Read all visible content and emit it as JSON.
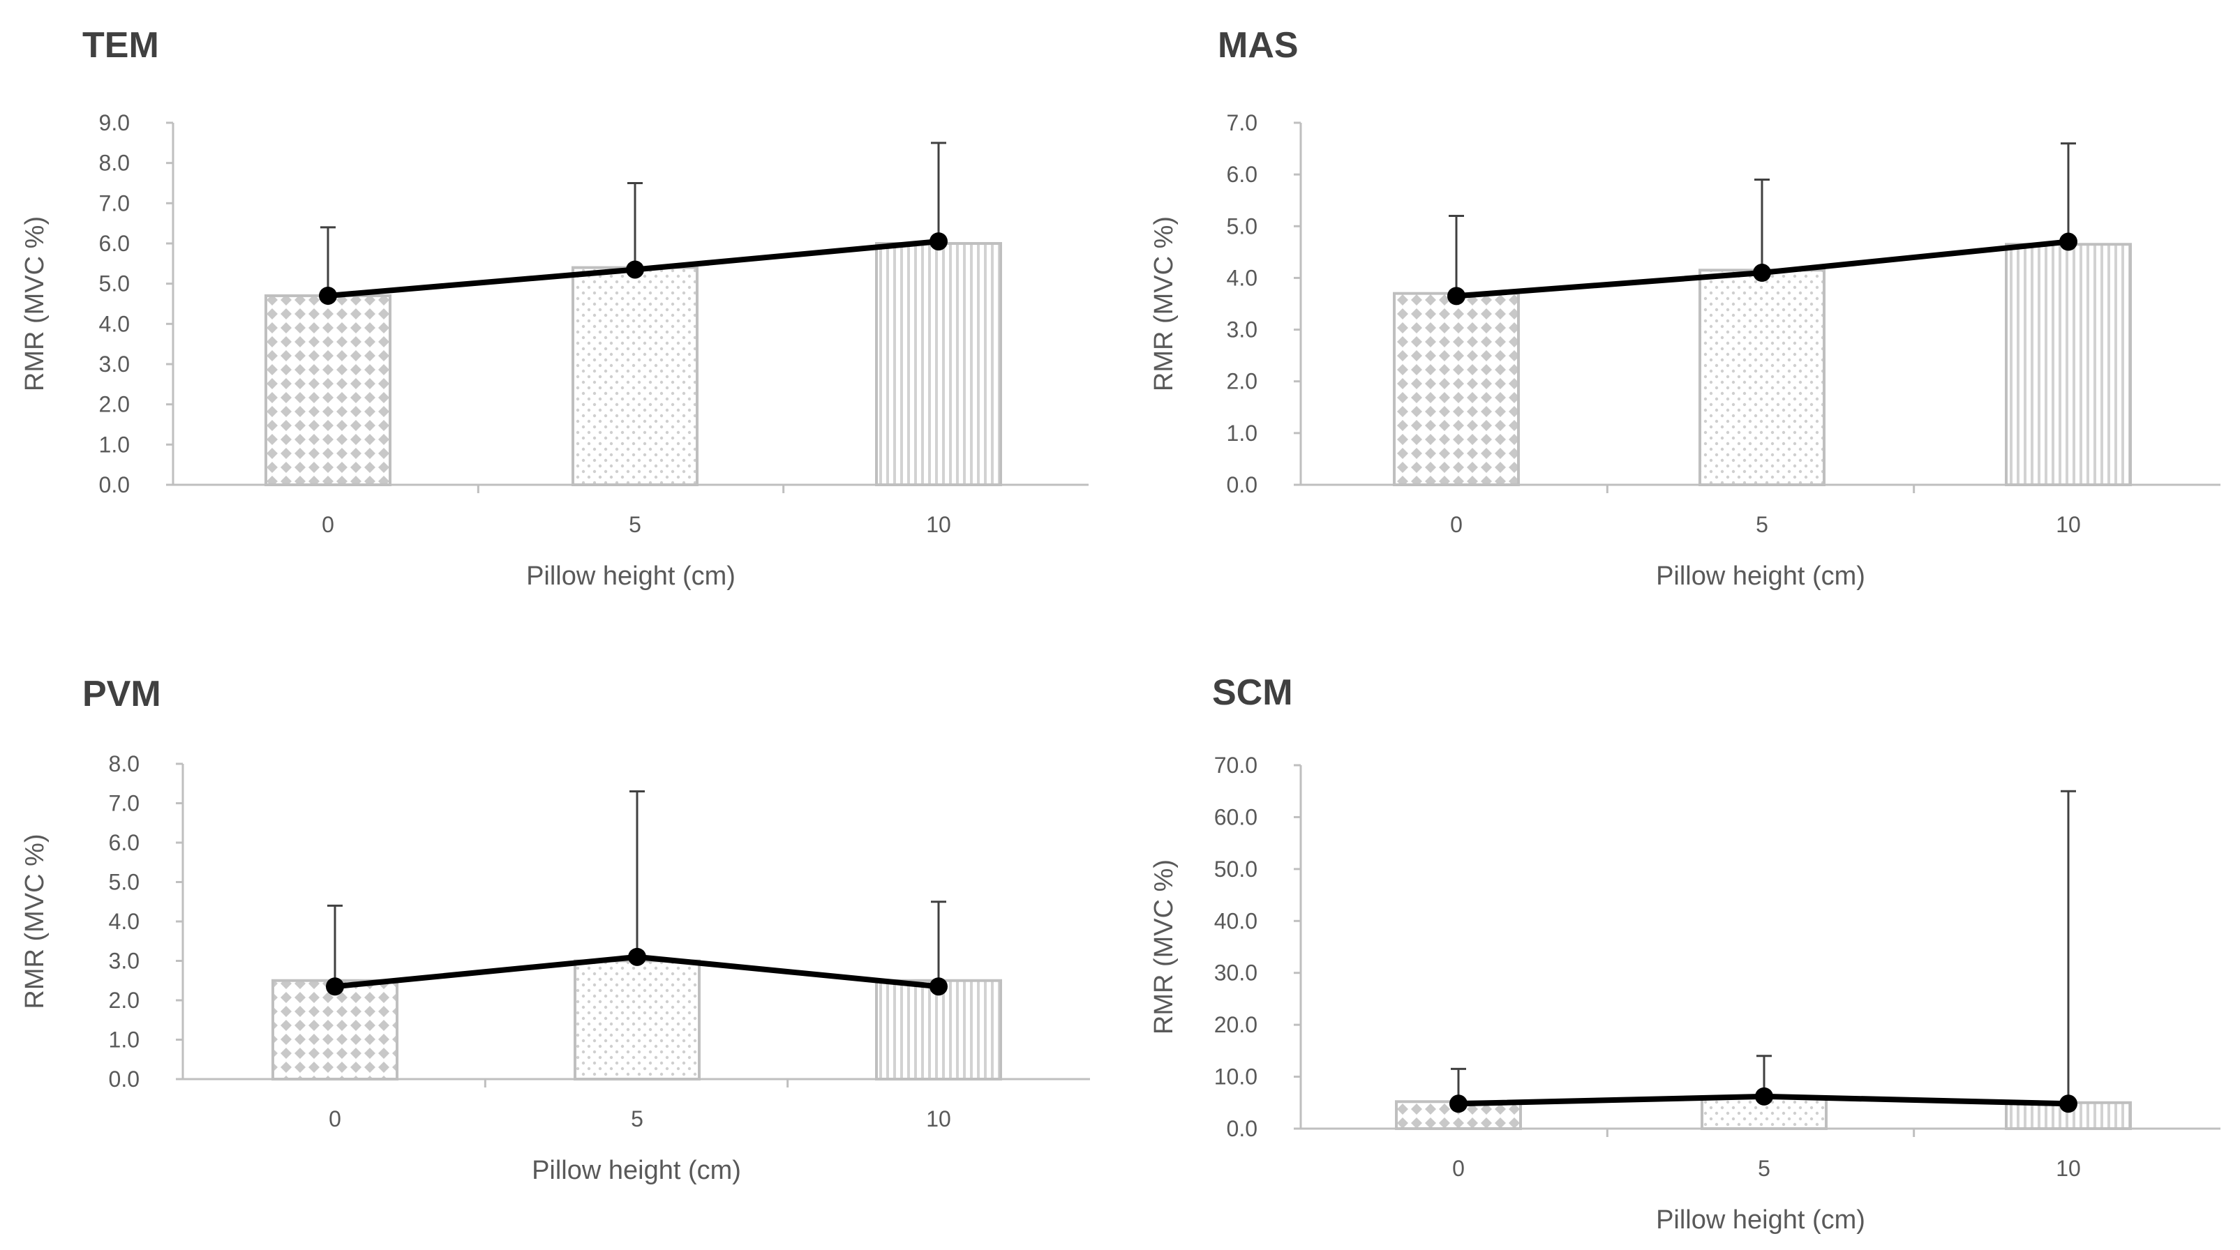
{
  "colors": {
    "bar_pattern": "#c8c8c8",
    "bar_border": "#bfbfbf",
    "line": "#000000",
    "axis": "#bfbfbf",
    "text": "#595959",
    "title": "#404040"
  },
  "chart_data": [
    {
      "type": "bar",
      "title": "TEM",
      "xlabel": "Pillow height (cm)",
      "ylabel": "RMR (MVC %)",
      "categories": [
        "0",
        "5",
        "10"
      ],
      "ylim": [
        0,
        9
      ],
      "ytick_labels": [
        "0.0",
        "1.0",
        "2.0",
        "3.0",
        "4.0",
        "5.0",
        "6.0",
        "7.0",
        "8.0",
        "9.0"
      ],
      "series": [
        {
          "name": "bars",
          "values": [
            4.7,
            5.4,
            6.0
          ],
          "error_upper": [
            6.4,
            7.5,
            8.5
          ]
        },
        {
          "name": "line",
          "values": [
            4.7,
            5.35,
            6.05
          ]
        }
      ]
    },
    {
      "type": "bar",
      "title": "MAS",
      "xlabel": "Pillow height (cm)",
      "ylabel": "RMR (MVC %)",
      "categories": [
        "0",
        "5",
        "10"
      ],
      "ylim": [
        0,
        7
      ],
      "ytick_labels": [
        "0.0",
        "1.0",
        "2.0",
        "3.0",
        "4.0",
        "5.0",
        "6.0",
        "7.0"
      ],
      "series": [
        {
          "name": "bars",
          "values": [
            3.7,
            4.15,
            4.65
          ],
          "error_upper": [
            5.2,
            5.9,
            6.6
          ]
        },
        {
          "name": "line",
          "values": [
            3.65,
            4.1,
            4.7
          ]
        }
      ]
    },
    {
      "type": "bar",
      "title": "PVM",
      "xlabel": "Pillow height (cm)",
      "ylabel": "RMR (MVC %)",
      "categories": [
        "0",
        "5",
        "10"
      ],
      "ylim": [
        0,
        8
      ],
      "ytick_labels": [
        "0.0",
        "1.0",
        "2.0",
        "3.0",
        "4.0",
        "5.0",
        "6.0",
        "7.0",
        "8.0"
      ],
      "series": [
        {
          "name": "bars",
          "values": [
            2.5,
            3.0,
            2.5
          ],
          "error_upper": [
            4.4,
            7.3,
            4.5
          ]
        },
        {
          "name": "line",
          "values": [
            2.35,
            3.1,
            2.35
          ]
        }
      ]
    },
    {
      "type": "bar",
      "title": "SCM",
      "xlabel": "Pillow height (cm)",
      "ylabel": "RMR (MVC %)",
      "categories": [
        "0",
        "5",
        "10"
      ],
      "ylim": [
        0,
        70
      ],
      "ytick_labels": [
        "0.0",
        "10.0",
        "20.0",
        "30.0",
        "40.0",
        "50.0",
        "60.0",
        "70.0"
      ],
      "series": [
        {
          "name": "bars",
          "values": [
            5.2,
            5.9,
            5.0
          ],
          "error_upper": [
            11.5,
            14.0,
            65.0
          ]
        },
        {
          "name": "line",
          "values": [
            4.8,
            6.2,
            4.8
          ]
        }
      ]
    }
  ]
}
